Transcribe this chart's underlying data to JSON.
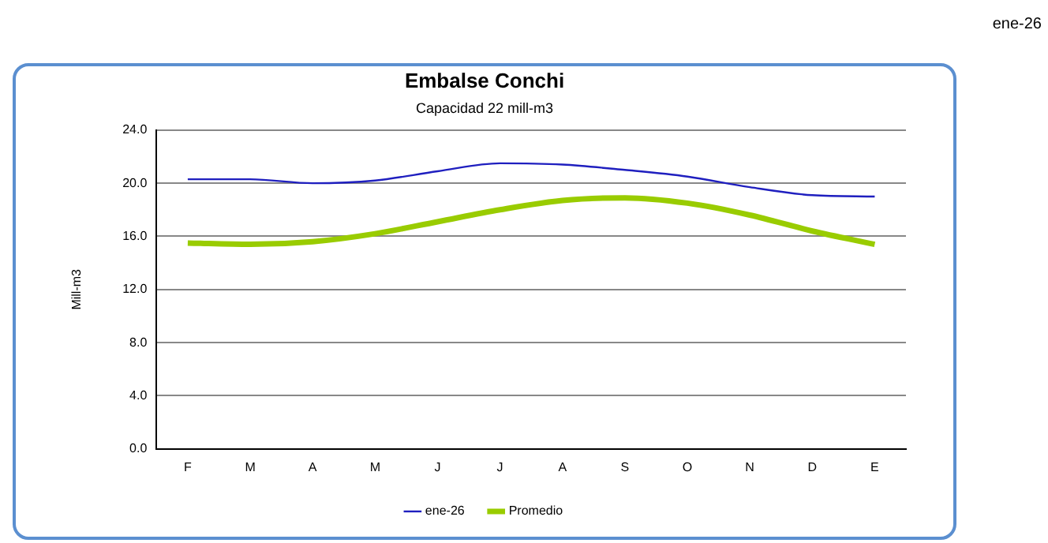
{
  "chart_data": {
    "type": "line",
    "title": "Embalse Conchi",
    "subtitle": "Capacidad 22 mill-m3",
    "ylabel": "Mill-m3",
    "annotations": [
      "ene-26"
    ],
    "categories": [
      "F",
      "M",
      "A",
      "M",
      "J",
      "J",
      "A",
      "S",
      "O",
      "N",
      "D",
      "E"
    ],
    "series": [
      {
        "name": "ene-26",
        "color": "#1f1fbf",
        "values": [
          20.3,
          20.3,
          20.0,
          20.2,
          20.9,
          21.5,
          21.4,
          21.0,
          20.5,
          19.7,
          19.1,
          19.0
        ]
      },
      {
        "name": "Promedio",
        "color": "#99cc00",
        "values": [
          15.5,
          15.4,
          15.6,
          16.2,
          17.1,
          18.0,
          18.7,
          18.9,
          18.5,
          17.6,
          16.4,
          15.4
        ]
      }
    ],
    "ylim": [
      0,
      24
    ],
    "yticks": [
      {
        "value": 0,
        "label": "0.0"
      },
      {
        "value": 4,
        "label": "4.0"
      },
      {
        "value": 8,
        "label": "8.0"
      },
      {
        "value": 12,
        "label": "12.0"
      },
      {
        "value": 16,
        "label": "16.0"
      },
      {
        "value": 20,
        "label": "20.0"
      },
      {
        "value": 24,
        "label": "24.0"
      }
    ],
    "grid": "y",
    "legend": "bottom",
    "marker": "none",
    "line_style": "solid"
  }
}
